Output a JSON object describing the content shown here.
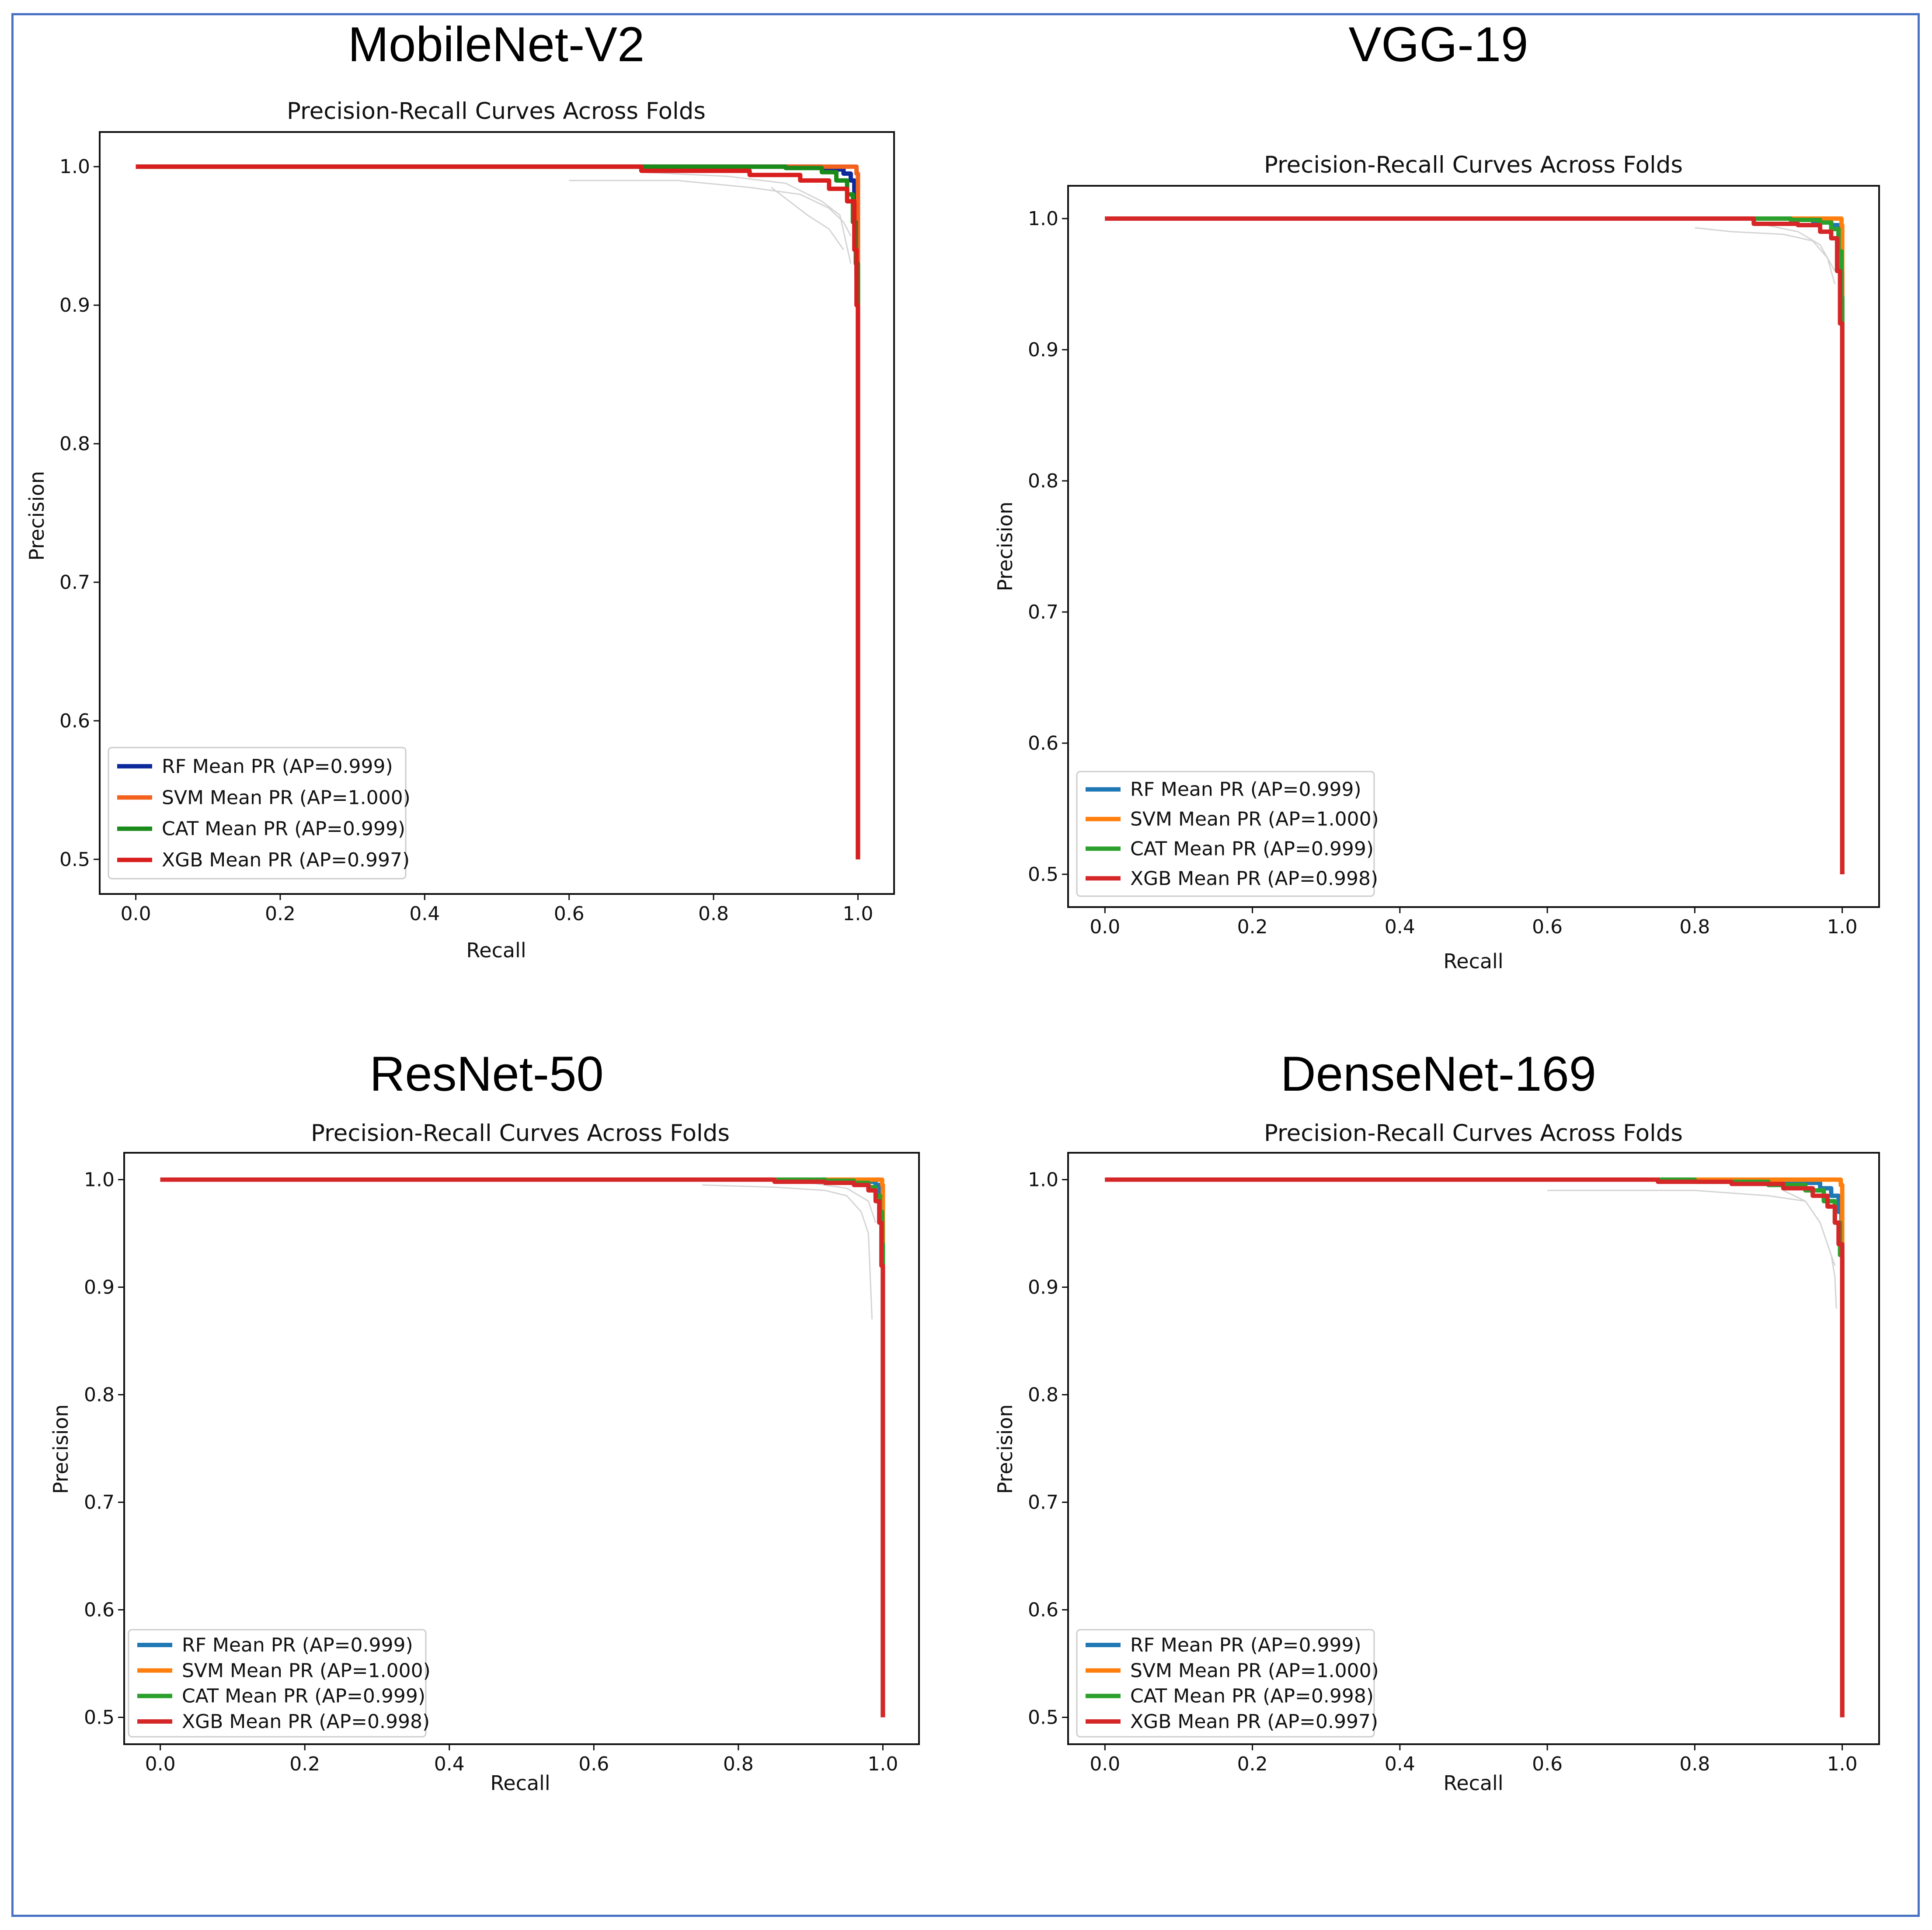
{
  "chart_data": [
    {
      "type": "line",
      "panel_title": "MobileNet-V2",
      "title": "Precision-Recall Curves Across Folds",
      "xlabel": "Recall",
      "ylabel": "Precision",
      "xlim": [
        -0.05,
        1.05
      ],
      "ylim": [
        0.475,
        1.025
      ],
      "xticks": [
        0.0,
        0.2,
        0.4,
        0.6,
        0.8,
        1.0
      ],
      "yticks": [
        0.5,
        0.6,
        0.7,
        0.8,
        0.9,
        1.0
      ],
      "grid": false,
      "legend_position": "lower-left",
      "series": [
        {
          "name": "RF Mean PR (AP=0.999)",
          "color": "#0d2a9c",
          "x": [
            0.0,
            0.6,
            0.85,
            0.95,
            0.98,
            0.99,
            0.995,
            0.998,
            1.0
          ],
          "y": [
            1.0,
            1.0,
            1.0,
            0.998,
            0.995,
            0.99,
            0.97,
            0.92,
            0.5
          ]
        },
        {
          "name": "SVM Mean PR (AP=1.000)",
          "color": "#f2611e",
          "x": [
            0.0,
            0.9,
            0.98,
            0.995,
            0.998,
            1.0,
            1.0
          ],
          "y": [
            1.0,
            1.0,
            1.0,
            1.0,
            0.995,
            0.99,
            0.5
          ]
        },
        {
          "name": "CAT Mean PR (AP=0.999)",
          "color": "#1a8a1a",
          "x": [
            0.0,
            0.6,
            0.9,
            0.95,
            0.97,
            0.985,
            0.993,
            0.997,
            1.0
          ],
          "y": [
            1.0,
            1.0,
            0.999,
            0.996,
            0.99,
            0.98,
            0.96,
            0.93,
            0.5
          ]
        },
        {
          "name": "XGB Mean PR (AP=0.997)",
          "color": "#d91e1e",
          "x": [
            0.0,
            0.6,
            0.7,
            0.85,
            0.92,
            0.96,
            0.985,
            0.995,
            0.998,
            1.0
          ],
          "y": [
            1.0,
            1.0,
            0.997,
            0.994,
            0.99,
            0.984,
            0.975,
            0.94,
            0.9,
            0.5
          ]
        }
      ],
      "fold_curves": [
        {
          "x": [
            0.6,
            0.75,
            0.85,
            0.92,
            0.96,
            0.98,
            0.99
          ],
          "y": [
            0.99,
            0.99,
            0.985,
            0.98,
            0.97,
            0.96,
            0.95
          ]
        },
        {
          "x": [
            0.7,
            0.82,
            0.9,
            0.95,
            0.975,
            0.99
          ],
          "y": [
            0.996,
            0.993,
            0.988,
            0.975,
            0.965,
            0.93
          ]
        },
        {
          "x": [
            0.88,
            0.93,
            0.96,
            0.98
          ],
          "y": [
            0.985,
            0.965,
            0.955,
            0.94
          ]
        }
      ]
    },
    {
      "type": "line",
      "panel_title": "VGG-19",
      "title": "Precision-Recall Curves Across Folds",
      "xlabel": "Recall",
      "ylabel": "Precision",
      "xlim": [
        -0.05,
        1.05
      ],
      "ylim": [
        0.475,
        1.025
      ],
      "xticks": [
        0.0,
        0.2,
        0.4,
        0.6,
        0.8,
        1.0
      ],
      "yticks": [
        0.5,
        0.6,
        0.7,
        0.8,
        0.9,
        1.0
      ],
      "grid": false,
      "legend_position": "lower-left",
      "series": [
        {
          "name": "RF Mean PR (AP=0.999)",
          "color": "#1f77b4",
          "x": [
            0.0,
            0.8,
            0.9,
            0.96,
            0.985,
            0.995,
            0.999,
            1.0
          ],
          "y": [
            1.0,
            1.0,
            1.0,
            0.998,
            0.995,
            0.985,
            0.96,
            0.5
          ]
        },
        {
          "name": "SVM Mean PR (AP=1.000)",
          "color": "#ff7f0e",
          "x": [
            0.0,
            0.95,
            0.995,
            0.999,
            1.0,
            1.0
          ],
          "y": [
            1.0,
            1.0,
            1.0,
            0.995,
            0.99,
            0.5
          ]
        },
        {
          "name": "CAT Mean PR (AP=0.999)",
          "color": "#2ca02c",
          "x": [
            0.0,
            0.85,
            0.93,
            0.97,
            0.985,
            0.995,
            0.999,
            1.0
          ],
          "y": [
            1.0,
            1.0,
            0.999,
            0.997,
            0.992,
            0.975,
            0.94,
            0.5
          ]
        },
        {
          "name": "XGB Mean PR (AP=0.998)",
          "color": "#d62728",
          "x": [
            0.0,
            0.8,
            0.88,
            0.94,
            0.97,
            0.985,
            0.993,
            0.997,
            1.0
          ],
          "y": [
            1.0,
            1.0,
            0.996,
            0.995,
            0.99,
            0.985,
            0.96,
            0.92,
            0.5
          ]
        }
      ],
      "fold_curves": [
        {
          "x": [
            0.8,
            0.85,
            0.92,
            0.96,
            0.98,
            0.99
          ],
          "y": [
            0.993,
            0.99,
            0.988,
            0.983,
            0.97,
            0.95
          ]
        },
        {
          "x": [
            0.88,
            0.94,
            0.97,
            0.99
          ],
          "y": [
            0.997,
            0.99,
            0.98,
            0.96
          ]
        }
      ]
    },
    {
      "type": "line",
      "panel_title": "ResNet-50",
      "title": "Precision-Recall Curves Across Folds",
      "xlabel": "Recall",
      "ylabel": "Precision",
      "xlim": [
        -0.05,
        1.05
      ],
      "ylim": [
        0.475,
        1.025
      ],
      "xticks": [
        0.0,
        0.2,
        0.4,
        0.6,
        0.8,
        1.0
      ],
      "yticks": [
        0.5,
        0.6,
        0.7,
        0.8,
        0.9,
        1.0
      ],
      "grid": false,
      "legend_position": "lower-left",
      "series": [
        {
          "name": "RF Mean PR (AP=0.999)",
          "color": "#1f77b4",
          "x": [
            0.0,
            0.8,
            0.92,
            0.97,
            0.99,
            0.996,
            0.999,
            1.0
          ],
          "y": [
            1.0,
            1.0,
            1.0,
            0.998,
            0.995,
            0.985,
            0.96,
            0.5
          ]
        },
        {
          "name": "SVM Mean PR (AP=1.000)",
          "color": "#ff7f0e",
          "x": [
            0.0,
            0.95,
            0.995,
            0.999,
            1.0,
            1.0
          ],
          "y": [
            1.0,
            1.0,
            1.0,
            0.995,
            0.99,
            0.5
          ]
        },
        {
          "name": "CAT Mean PR (AP=0.999)",
          "color": "#2ca02c",
          "x": [
            0.0,
            0.8,
            0.92,
            0.96,
            0.98,
            0.99,
            0.996,
            0.999,
            1.0
          ],
          "y": [
            1.0,
            1.0,
            0.999,
            0.997,
            0.993,
            0.985,
            0.97,
            0.94,
            0.5
          ]
        },
        {
          "name": "XGB Mean PR (AP=0.998)",
          "color": "#d62728",
          "x": [
            0.0,
            0.75,
            0.85,
            0.92,
            0.96,
            0.98,
            0.99,
            0.995,
            0.998,
            1.0
          ],
          "y": [
            1.0,
            1.0,
            0.998,
            0.997,
            0.995,
            0.99,
            0.98,
            0.96,
            0.92,
            0.5
          ]
        }
      ],
      "fold_curves": [
        {
          "x": [
            0.75,
            0.85,
            0.92,
            0.95,
            0.97,
            0.98,
            0.985
          ],
          "y": [
            0.995,
            0.993,
            0.99,
            0.985,
            0.97,
            0.95,
            0.87
          ]
        },
        {
          "x": [
            0.9,
            0.95,
            0.98,
            0.99
          ],
          "y": [
            0.997,
            0.992,
            0.98,
            0.96
          ]
        }
      ]
    },
    {
      "type": "line",
      "panel_title": "DenseNet-169",
      "title": "Precision-Recall Curves Across Folds",
      "xlabel": "Recall",
      "ylabel": "Precision",
      "xlim": [
        -0.05,
        1.05
      ],
      "ylim": [
        0.475,
        1.025
      ],
      "xticks": [
        0.0,
        0.2,
        0.4,
        0.6,
        0.8,
        1.0
      ],
      "yticks": [
        0.5,
        0.6,
        0.7,
        0.8,
        0.9,
        1.0
      ],
      "grid": false,
      "legend_position": "lower-left",
      "series": [
        {
          "name": "RF Mean PR (AP=0.999)",
          "color": "#1f77b4",
          "x": [
            0.0,
            0.6,
            0.85,
            0.93,
            0.97,
            0.985,
            0.995,
            0.999,
            1.0
          ],
          "y": [
            1.0,
            1.0,
            0.999,
            0.997,
            0.992,
            0.985,
            0.97,
            0.94,
            0.5
          ]
        },
        {
          "name": "SVM Mean PR (AP=1.000)",
          "color": "#ff7f0e",
          "x": [
            0.0,
            0.9,
            0.99,
            0.998,
            1.0,
            1.0
          ],
          "y": [
            1.0,
            1.0,
            1.0,
            0.995,
            0.98,
            0.5
          ]
        },
        {
          "name": "CAT Mean PR (AP=0.998)",
          "color": "#2ca02c",
          "x": [
            0.0,
            0.6,
            0.8,
            0.9,
            0.95,
            0.975,
            0.99,
            0.997,
            1.0
          ],
          "y": [
            1.0,
            1.0,
            0.998,
            0.995,
            0.99,
            0.98,
            0.96,
            0.93,
            0.5
          ]
        },
        {
          "name": "XGB Mean PR (AP=0.997)",
          "color": "#d62728",
          "x": [
            0.0,
            0.6,
            0.75,
            0.85,
            0.92,
            0.96,
            0.98,
            0.99,
            0.995,
            1.0
          ],
          "y": [
            1.0,
            1.0,
            0.998,
            0.996,
            0.992,
            0.985,
            0.975,
            0.96,
            0.94,
            0.5
          ]
        }
      ],
      "fold_curves": [
        {
          "x": [
            0.6,
            0.7,
            0.8,
            0.9,
            0.95,
            0.97,
            0.98,
            0.99
          ],
          "y": [
            0.99,
            0.99,
            0.99,
            0.985,
            0.98,
            0.96,
            0.94,
            0.92
          ]
        },
        {
          "x": [
            0.92,
            0.95,
            0.97,
            0.985,
            0.99,
            0.992
          ],
          "y": [
            0.99,
            0.98,
            0.96,
            0.93,
            0.91,
            0.88
          ]
        }
      ]
    }
  ]
}
